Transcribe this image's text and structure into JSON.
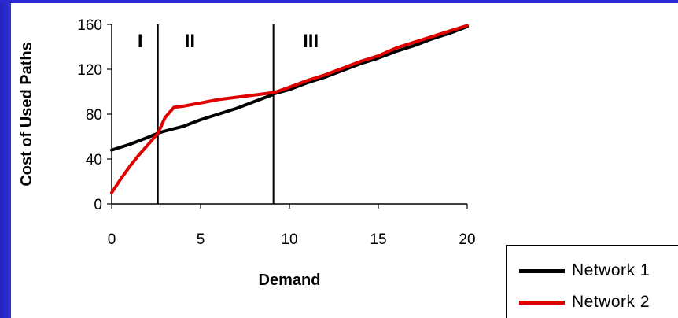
{
  "chart_data": {
    "type": "line",
    "xlabel": "Demand",
    "ylabel": "Cost of Used Paths",
    "xlim": [
      0,
      20
    ],
    "ylim": [
      0,
      160
    ],
    "xticks": [
      0,
      5,
      10,
      15,
      20
    ],
    "yticks": [
      0,
      40,
      80,
      120,
      160
    ],
    "grid": false,
    "legend_position": "bottom-right",
    "regions": [
      {
        "label": "I",
        "start": 0,
        "end": 2.6
      },
      {
        "label": "II",
        "start": 2.6,
        "end": 9.1
      },
      {
        "label": "III",
        "start": 9.1,
        "end": 20
      }
    ],
    "boundaries": [
      2.6,
      9.1
    ],
    "series": [
      {
        "name": "Network 1",
        "color": "#000000",
        "x": [
          0,
          1,
          2,
          2.6,
          3,
          3.5,
          4,
          5,
          6,
          7,
          8,
          9,
          9.1,
          10,
          11,
          12,
          13,
          14,
          15,
          16,
          17,
          18,
          19,
          20
        ],
        "y": [
          48,
          53,
          59,
          63,
          65,
          67,
          69,
          75,
          80,
          85,
          91,
          97,
          98,
          102,
          108,
          113,
          119,
          125,
          130,
          136,
          141,
          147,
          152,
          158
        ]
      },
      {
        "name": "Network 2",
        "color": "#e00000",
        "x": [
          0,
          0.5,
          1,
          1.5,
          2,
          2.6,
          3,
          3.5,
          4,
          5,
          6,
          7,
          8,
          9,
          9.1,
          10,
          11,
          12,
          13,
          14,
          15,
          16,
          17,
          18,
          19,
          20
        ],
        "y": [
          10,
          22,
          33,
          43,
          52,
          63,
          77,
          86,
          87,
          90,
          93,
          95,
          97,
          99,
          99,
          104,
          110,
          115,
          121,
          127,
          132,
          139,
          144,
          149,
          154,
          159
        ]
      }
    ]
  },
  "legend": {
    "items": [
      {
        "label": "Network 1",
        "color": "#000000"
      },
      {
        "label": "Network 2",
        "color": "#e00000"
      }
    ]
  },
  "colors": {
    "frame_blue": "#2323c0",
    "background": "#ffffff"
  }
}
